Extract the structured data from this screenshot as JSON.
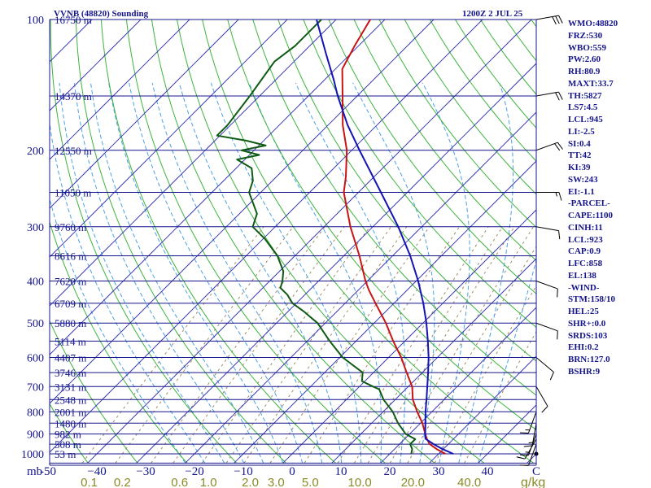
{
  "header": {
    "station": "VVNB (48820) Sounding",
    "time": "1200Z  2 JUL 25"
  },
  "pressure_labels": [
    {
      "p": 100,
      "text": "100"
    },
    {
      "p": 200,
      "text": "200"
    },
    {
      "p": 300,
      "text": "300"
    },
    {
      "p": 400,
      "text": "400"
    },
    {
      "p": 500,
      "text": "500"
    },
    {
      "p": 600,
      "text": "600"
    },
    {
      "p": 700,
      "text": "700"
    },
    {
      "p": 800,
      "text": "800"
    },
    {
      "p": 900,
      "text": "900"
    },
    {
      "p": 1000,
      "text": "1000"
    }
  ],
  "height_labels": [
    {
      "p": 100,
      "text": "16750 m"
    },
    {
      "p": 150,
      "text": "14370 m"
    },
    {
      "p": 200,
      "text": "12550 m"
    },
    {
      "p": 250,
      "text": "11050 m"
    },
    {
      "p": 300,
      "text": "9760 m"
    },
    {
      "p": 350,
      "text": "8616 m"
    },
    {
      "p": 400,
      "text": "7620 m"
    },
    {
      "p": 450,
      "text": "6709 m"
    },
    {
      "p": 500,
      "text": "5880 m"
    },
    {
      "p": 550,
      "text": "5114 m"
    },
    {
      "p": 600,
      "text": "4407 m"
    },
    {
      "p": 650,
      "text": "3746 m"
    },
    {
      "p": 700,
      "text": "3131 m"
    },
    {
      "p": 750,
      "text": "2548 m"
    },
    {
      "p": 800,
      "text": "2001 m"
    },
    {
      "p": 850,
      "text": "1480 m"
    },
    {
      "p": 900,
      "text": "982 m"
    },
    {
      "p": 950,
      "text": "508 m"
    },
    {
      "p": 1000,
      "text": "53 m"
    }
  ],
  "mb_label": "mb",
  "temp_axis": {
    "ticks": [
      {
        "t": -50,
        "text": "-50"
      },
      {
        "t": -40,
        "text": "−40"
      },
      {
        "t": -30,
        "text": "−30"
      },
      {
        "t": -20,
        "text": "−20"
      },
      {
        "t": -10,
        "text": "−10"
      },
      {
        "t": 0,
        "text": "0"
      },
      {
        "t": 10,
        "text": "10"
      },
      {
        "t": 20,
        "text": "20"
      },
      {
        "t": 30,
        "text": "30"
      },
      {
        "t": 40,
        "text": "40"
      },
      {
        "t": 50,
        "text": "C"
      }
    ]
  },
  "mixing_axis": {
    "unit": "g/kg",
    "labels": [
      {
        "w": 0.1,
        "text": "0.1"
      },
      {
        "w": 0.2,
        "text": "0.2"
      },
      {
        "w": 0.6,
        "text": "0.6"
      },
      {
        "w": 1.0,
        "text": "1.0"
      },
      {
        "w": 2.0,
        "text": "2.0"
      },
      {
        "w": 3.0,
        "text": "3.0"
      },
      {
        "w": 5.0,
        "text": "5.0"
      },
      {
        "w": 10.0,
        "text": "10.0"
      },
      {
        "w": 20.0,
        "text": "20.0"
      },
      {
        "w": 40.0,
        "text": "40.0"
      }
    ]
  },
  "indices": [
    "WMO:48820",
    "FRZ:530",
    "WBO:559",
    "PW:2.60",
    "RH:80.9",
    "MAXT:33.7",
    "TH:5827",
    "LS7:4.5",
    "LCL:945",
    "LI:-2.5",
    "SI:0.4",
    "TT:42",
    "KI:39",
    "SW:243",
    "EI:-1.1",
    "-PARCEL-",
    "CAPE:1100",
    "CINH:11",
    "LCL:923",
    "CAP:0.9",
    "LFC:858",
    "EL:138",
    "-WIND-",
    "STM:158/10",
    "HEL:25",
    "SHR+:0.0",
    "SRDS:103",
    "EHI:0.2",
    "BRN:127.0",
    "BSHR:9"
  ],
  "colors": {
    "isobar": "#14148c",
    "isotherm": "#3a3ab0",
    "dry_adiabat": "#3cb43c",
    "moist_adiabat": "#4aa0e6",
    "mixing_ratio": "#a08c64",
    "temperature": "#c81414",
    "dewpoint": "#0f5a14",
    "parcel": "#1414b4",
    "label_olive": "#8a8a28"
  },
  "chart_data": {
    "type": "line",
    "title": "VVNB (48820) Sounding",
    "subtitle": "1200Z  2 JUL 25",
    "xlabel": "C",
    "ylabel": "mb",
    "xlim": [
      -50,
      50
    ],
    "ylim": [
      1050,
      100
    ],
    "y_scale": "log",
    "series": [
      {
        "name": "temperature",
        "points": [
          [
            1000,
            31.4
          ],
          [
            975,
            28.6
          ],
          [
            950,
            26.2
          ],
          [
            925,
            24.6
          ],
          [
            900,
            23.2
          ],
          [
            850,
            20.4
          ],
          [
            800,
            17.0
          ],
          [
            750,
            13.6
          ],
          [
            700,
            10.8
          ],
          [
            650,
            6.8
          ],
          [
            600,
            2.6
          ],
          [
            550,
            -2.4
          ],
          [
            500,
            -7.6
          ],
          [
            450,
            -13.8
          ],
          [
            420,
            -17.8
          ],
          [
            400,
            -20.4
          ],
          [
            350,
            -26.8
          ],
          [
            300,
            -34.6
          ],
          [
            250,
            -43.0
          ],
          [
            230,
            -45.8
          ],
          [
            200,
            -51.0
          ],
          [
            175,
            -57.0
          ],
          [
            150,
            -63.0
          ],
          [
            130,
            -68.6
          ],
          [
            115,
            -70.8
          ],
          [
            100,
            -73.0
          ]
        ]
      },
      {
        "name": "dewpoint",
        "points": [
          [
            1000,
            24.4
          ],
          [
            975,
            23.6
          ],
          [
            950,
            22.2
          ],
          [
            925,
            22.2
          ],
          [
            900,
            19.2
          ],
          [
            850,
            15.4
          ],
          [
            800,
            12.0
          ],
          [
            750,
            7.6
          ],
          [
            710,
            4.6
          ],
          [
            700,
            2.8
          ],
          [
            680,
            -0.6
          ],
          [
            650,
            -2.2
          ],
          [
            600,
            -9.4
          ],
          [
            550,
            -15.4
          ],
          [
            500,
            -21.6
          ],
          [
            470,
            -26.8
          ],
          [
            450,
            -30.8
          ],
          [
            430,
            -33.6
          ],
          [
            415,
            -36.4
          ],
          [
            400,
            -37.4
          ],
          [
            380,
            -39.2
          ],
          [
            350,
            -43.6
          ],
          [
            320,
            -49.6
          ],
          [
            300,
            -54.6
          ],
          [
            280,
            -56.4
          ],
          [
            250,
            -62.4
          ],
          [
            235,
            -64.0
          ],
          [
            220,
            -66.8
          ],
          [
            210,
            -71.6
          ],
          [
            205,
            -68.0
          ],
          [
            200,
            -72.6
          ],
          [
            195,
            -68.6
          ],
          [
            190,
            -73.6
          ],
          [
            185,
            -80.6
          ],
          [
            175,
            -80.6
          ],
          [
            150,
            -82.0
          ],
          [
            125,
            -84.0
          ],
          [
            115,
            -83.0
          ],
          [
            100,
            -83.0
          ]
        ]
      },
      {
        "name": "parcel",
        "points": [
          [
            1000,
            33.0
          ],
          [
            975,
            29.8
          ],
          [
            950,
            27.0
          ],
          [
            923,
            24.2
          ],
          [
            900,
            23.2
          ],
          [
            850,
            21.0
          ],
          [
            800,
            18.7
          ],
          [
            750,
            16.4
          ],
          [
            700,
            13.9
          ],
          [
            650,
            11.2
          ],
          [
            600,
            8.2
          ],
          [
            550,
            4.7
          ],
          [
            500,
            0.7
          ],
          [
            450,
            -4.0
          ],
          [
            400,
            -9.6
          ],
          [
            350,
            -16.4
          ],
          [
            300,
            -24.8
          ],
          [
            250,
            -35.4
          ],
          [
            200,
            -48.4
          ],
          [
            175,
            -56.0
          ],
          [
            150,
            -64.0
          ],
          [
            138,
            -68.0
          ],
          [
            120,
            -75.0
          ],
          [
            100,
            -84.0
          ]
        ]
      }
    ],
    "wind_barbs": [
      {
        "p": 100,
        "dir": 80,
        "spd": 30
      },
      {
        "p": 150,
        "dir": 80,
        "spd": 20
      },
      {
        "p": 200,
        "dir": 70,
        "spd": 20
      },
      {
        "p": 250,
        "dir": 90,
        "spd": 15
      },
      {
        "p": 300,
        "dir": 100,
        "spd": 10
      },
      {
        "p": 400,
        "dir": 110,
        "spd": 10
      },
      {
        "p": 500,
        "dir": 110,
        "spd": 10
      },
      {
        "p": 600,
        "dir": 130,
        "spd": 10
      },
      {
        "p": 700,
        "dir": 150,
        "spd": 10
      },
      {
        "p": 800,
        "dir": 200,
        "spd": 15
      },
      {
        "p": 850,
        "dir": 190,
        "spd": 15
      },
      {
        "p": 900,
        "dir": 200,
        "spd": 15
      },
      {
        "p": 925,
        "dir": 210,
        "spd": 10
      },
      {
        "p": 950,
        "dir": 200,
        "spd": 10
      },
      {
        "p": 1000,
        "dir": 0,
        "spd": 0
      }
    ]
  }
}
